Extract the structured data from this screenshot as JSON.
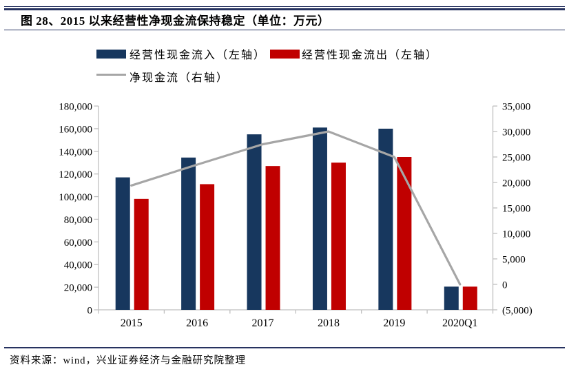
{
  "header": {
    "title": "图 28、2015 以来经营性净现金流保持稳定（单位：万元）"
  },
  "legend": {
    "items": [
      {
        "label": "经营性现金流入（左轴）",
        "color": "#17375E",
        "swatch": "box"
      },
      {
        "label": "经营性现金流出（左轴）",
        "color": "#C00000",
        "swatch": "box"
      },
      {
        "label": "净现金流（右轴）",
        "color": "#A6A6A6",
        "swatch": "line"
      }
    ]
  },
  "chart_data": {
    "type": "bar",
    "subtype": "clustered-bar-with-line",
    "categories": [
      "2015",
      "2016",
      "2017",
      "2018",
      "2019",
      "2020Q1"
    ],
    "series": [
      {
        "name": "经营性现金流入（左轴）",
        "type": "bar",
        "axis": "left",
        "color": "#17375E",
        "values": [
          117000,
          134500,
          155000,
          161000,
          160000,
          20500
        ]
      },
      {
        "name": "经营性现金流出（左轴）",
        "type": "bar",
        "axis": "left",
        "color": "#C00000",
        "values": [
          98000,
          111000,
          127000,
          130000,
          135000,
          20500
        ]
      },
      {
        "name": "净现金流（右轴）",
        "type": "line",
        "axis": "right",
        "color": "#A6A6A6",
        "values": [
          19400,
          23500,
          27500,
          30000,
          25000,
          0
        ]
      }
    ],
    "title": "2015 以来经营性净现金流保持稳定",
    "unit": "万元",
    "left_axis": {
      "min": 0,
      "max": 180000,
      "step": 20000
    },
    "right_axis": {
      "min": -5000,
      "max": 35000,
      "step": 5000,
      "negative_color": "#FF0000"
    },
    "grid": false,
    "legend_position": "top"
  },
  "footer": {
    "source": "资料来源：wind，兴业证券经济与金融研究院整理"
  },
  "colors": {
    "rule": "#26325F",
    "axis": "#BFBFBF",
    "bar_navy": "#17375E",
    "bar_red": "#C00000",
    "line_gray": "#A6A6A6",
    "negative_label": "#FF0000"
  }
}
